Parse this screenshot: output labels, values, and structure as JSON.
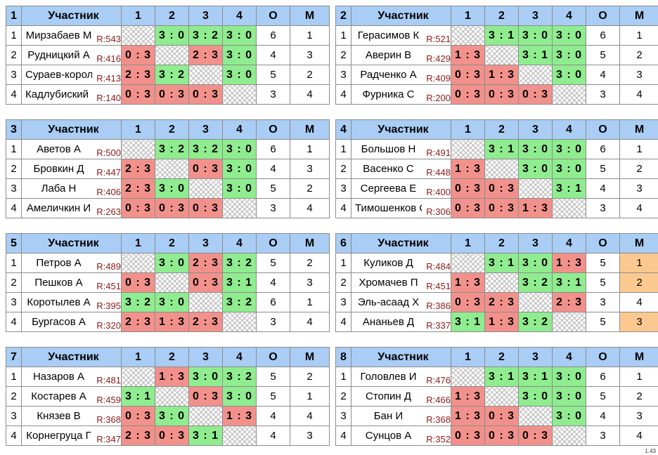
{
  "header_labels": {
    "participant": "Участник",
    "cols": [
      "1",
      "2",
      "3",
      "4"
    ],
    "points": "О",
    "place": "М"
  },
  "version": "1.43",
  "groups": [
    {
      "num": "1",
      "rows": [
        {
          "idx": "1",
          "name": "Мирзабаев М",
          "rating": "R:543",
          "cells": [
            {
              "t": "x",
              "v": ""
            },
            {
              "t": "win",
              "v": "3 : 0"
            },
            {
              "t": "win",
              "v": "3 : 2"
            },
            {
              "t": "win",
              "v": "3 : 0"
            }
          ],
          "points": "6",
          "place": "1"
        },
        {
          "idx": "2",
          "name": "Рудницкий А",
          "rating": "R:416",
          "cells": [
            {
              "t": "loss",
              "v": "0 : 3"
            },
            {
              "t": "x",
              "v": ""
            },
            {
              "t": "loss",
              "v": "2 : 3"
            },
            {
              "t": "win",
              "v": "3 : 0"
            }
          ],
          "points": "4",
          "place": "3"
        },
        {
          "idx": "3",
          "name": "Сураев-королёв",
          "rating": "R:413",
          "cells": [
            {
              "t": "loss",
              "v": "2 : 3"
            },
            {
              "t": "win",
              "v": "3 : 2"
            },
            {
              "t": "x",
              "v": ""
            },
            {
              "t": "win",
              "v": "3 : 0"
            }
          ],
          "points": "5",
          "place": "2"
        },
        {
          "idx": "4",
          "name": "Кадлубиский С",
          "rating": "R:140",
          "cells": [
            {
              "t": "loss",
              "v": "0 : 3"
            },
            {
              "t": "loss",
              "v": "0 : 3"
            },
            {
              "t": "loss",
              "v": "0 : 3"
            },
            {
              "t": "x",
              "v": ""
            }
          ],
          "points": "3",
          "place": "4"
        }
      ]
    },
    {
      "num": "2",
      "rows": [
        {
          "idx": "1",
          "name": "Герасимов К",
          "rating": "R:521",
          "cells": [
            {
              "t": "x",
              "v": ""
            },
            {
              "t": "win",
              "v": "3 : 1"
            },
            {
              "t": "win",
              "v": "3 : 0"
            },
            {
              "t": "win",
              "v": "3 : 0"
            }
          ],
          "points": "6",
          "place": "1"
        },
        {
          "idx": "2",
          "name": "Аверин В",
          "rating": "R:429",
          "cells": [
            {
              "t": "loss",
              "v": "1 : 3"
            },
            {
              "t": "x",
              "v": ""
            },
            {
              "t": "win",
              "v": "3 : 1"
            },
            {
              "t": "win",
              "v": "3 : 0"
            }
          ],
          "points": "5",
          "place": "2"
        },
        {
          "idx": "3",
          "name": "Радченко А",
          "rating": "R:409",
          "cells": [
            {
              "t": "loss",
              "v": "0 : 3"
            },
            {
              "t": "loss",
              "v": "1 : 3"
            },
            {
              "t": "x",
              "v": ""
            },
            {
              "t": "win",
              "v": "3 : 0"
            }
          ],
          "points": "4",
          "place": "3"
        },
        {
          "idx": "4",
          "name": "Фурника С",
          "rating": "R:200",
          "cells": [
            {
              "t": "loss",
              "v": "0 : 3"
            },
            {
              "t": "loss",
              "v": "0 : 3"
            },
            {
              "t": "loss",
              "v": "0 : 3"
            },
            {
              "t": "x",
              "v": ""
            }
          ],
          "points": "3",
          "place": "4"
        }
      ]
    },
    {
      "num": "3",
      "rows": [
        {
          "idx": "1",
          "name": "Аветов А",
          "rating": "R:500",
          "cells": [
            {
              "t": "x",
              "v": ""
            },
            {
              "t": "win",
              "v": "3 : 2"
            },
            {
              "t": "win",
              "v": "3 : 2"
            },
            {
              "t": "win",
              "v": "3 : 0"
            }
          ],
          "points": "6",
          "place": "1"
        },
        {
          "idx": "2",
          "name": "Бровкин Д",
          "rating": "R:447",
          "cells": [
            {
              "t": "loss",
              "v": "2 : 3"
            },
            {
              "t": "x",
              "v": ""
            },
            {
              "t": "loss",
              "v": "0 : 3"
            },
            {
              "t": "win",
              "v": "3 : 0"
            }
          ],
          "points": "4",
          "place": "3"
        },
        {
          "idx": "3",
          "name": "Лаба Н",
          "rating": "R:406",
          "cells": [
            {
              "t": "loss",
              "v": "2 : 3"
            },
            {
              "t": "win",
              "v": "3 : 0"
            },
            {
              "t": "x",
              "v": ""
            },
            {
              "t": "win",
              "v": "3 : 0"
            }
          ],
          "points": "5",
          "place": "2"
        },
        {
          "idx": "4",
          "name": "Амеличкин И",
          "rating": "R:263",
          "cells": [
            {
              "t": "loss",
              "v": "0 : 3"
            },
            {
              "t": "loss",
              "v": "0 : 3"
            },
            {
              "t": "loss",
              "v": "0 : 3"
            },
            {
              "t": "x",
              "v": ""
            }
          ],
          "points": "3",
          "place": "4"
        }
      ]
    },
    {
      "num": "4",
      "rows": [
        {
          "idx": "1",
          "name": "Большов Н",
          "rating": "R:491",
          "cells": [
            {
              "t": "x",
              "v": ""
            },
            {
              "t": "win",
              "v": "3 : 1"
            },
            {
              "t": "win",
              "v": "3 : 0"
            },
            {
              "t": "win",
              "v": "3 : 0"
            }
          ],
          "points": "6",
          "place": "1"
        },
        {
          "idx": "2",
          "name": "Васенко С",
          "rating": "R:448",
          "cells": [
            {
              "t": "loss",
              "v": "1 : 3"
            },
            {
              "t": "x",
              "v": ""
            },
            {
              "t": "win",
              "v": "3 : 0"
            },
            {
              "t": "win",
              "v": "3 : 0"
            }
          ],
          "points": "5",
          "place": "2"
        },
        {
          "idx": "3",
          "name": "Сергеева Е",
          "rating": "R:400",
          "cells": [
            {
              "t": "loss",
              "v": "0 : 3"
            },
            {
              "t": "loss",
              "v": "0 : 3"
            },
            {
              "t": "x",
              "v": ""
            },
            {
              "t": "win",
              "v": "3 : 1"
            }
          ],
          "points": "4",
          "place": "3"
        },
        {
          "idx": "4",
          "name": "Тимошенков С",
          "rating": "R:306",
          "cells": [
            {
              "t": "loss",
              "v": "0 : 3"
            },
            {
              "t": "loss",
              "v": "0 : 3"
            },
            {
              "t": "loss",
              "v": "1 : 3"
            },
            {
              "t": "x",
              "v": ""
            }
          ],
          "points": "3",
          "place": "4"
        }
      ]
    },
    {
      "num": "5",
      "rows": [
        {
          "idx": "1",
          "name": "Петров А",
          "rating": "R:489",
          "cells": [
            {
              "t": "x",
              "v": ""
            },
            {
              "t": "win",
              "v": "3 : 0"
            },
            {
              "t": "loss",
              "v": "2 : 3"
            },
            {
              "t": "win",
              "v": "3 : 2"
            }
          ],
          "points": "5",
          "place": "2"
        },
        {
          "idx": "2",
          "name": "Пешков А",
          "rating": "R:451",
          "cells": [
            {
              "t": "loss",
              "v": "0 : 3"
            },
            {
              "t": "x",
              "v": ""
            },
            {
              "t": "loss",
              "v": "0 : 3"
            },
            {
              "t": "win",
              "v": "3 : 1"
            }
          ],
          "points": "4",
          "place": "3"
        },
        {
          "idx": "3",
          "name": "Коротылев А",
          "rating": "R:395",
          "cells": [
            {
              "t": "win",
              "v": "3 : 2"
            },
            {
              "t": "win",
              "v": "3 : 0"
            },
            {
              "t": "x",
              "v": ""
            },
            {
              "t": "win",
              "v": "3 : 2"
            }
          ],
          "points": "6",
          "place": "1"
        },
        {
          "idx": "4",
          "name": "Бургасов А",
          "rating": "R:320",
          "cells": [
            {
              "t": "loss",
              "v": "2 : 3"
            },
            {
              "t": "loss",
              "v": "1 : 3"
            },
            {
              "t": "loss",
              "v": "2 : 3"
            },
            {
              "t": "x",
              "v": ""
            }
          ],
          "points": "3",
          "place": "4"
        }
      ]
    },
    {
      "num": "6",
      "rows": [
        {
          "idx": "1",
          "name": "Куликов Д",
          "rating": "R:484",
          "cells": [
            {
              "t": "x",
              "v": ""
            },
            {
              "t": "win",
              "v": "3 : 1"
            },
            {
              "t": "win",
              "v": "3 : 0"
            },
            {
              "t": "loss",
              "v": "1 : 3"
            }
          ],
          "points": "5",
          "place": "1",
          "place_hl": true
        },
        {
          "idx": "2",
          "name": "Хромачев П",
          "rating": "R:451",
          "cells": [
            {
              "t": "loss",
              "v": "1 : 3"
            },
            {
              "t": "x",
              "v": ""
            },
            {
              "t": "win",
              "v": "3 : 2"
            },
            {
              "t": "win",
              "v": "3 : 1"
            }
          ],
          "points": "5",
          "place": "2",
          "place_hl": true
        },
        {
          "idx": "3",
          "name": "Эль-асаад Х",
          "rating": "R:386",
          "cells": [
            {
              "t": "loss",
              "v": "0 : 3"
            },
            {
              "t": "loss",
              "v": "2 : 3"
            },
            {
              "t": "x",
              "v": ""
            },
            {
              "t": "loss",
              "v": "2 : 3"
            }
          ],
          "points": "3",
          "place": "4"
        },
        {
          "idx": "4",
          "name": "Ананьев Д",
          "rating": "R:337",
          "cells": [
            {
              "t": "win",
              "v": "3 : 1"
            },
            {
              "t": "loss",
              "v": "1 : 3"
            },
            {
              "t": "win",
              "v": "3 : 2"
            },
            {
              "t": "x",
              "v": ""
            }
          ],
          "points": "5",
          "place": "3",
          "place_hl": true
        }
      ]
    },
    {
      "num": "7",
      "rows": [
        {
          "idx": "1",
          "name": "Назаров А",
          "rating": "R:481",
          "cells": [
            {
              "t": "x",
              "v": ""
            },
            {
              "t": "loss",
              "v": "1 : 3"
            },
            {
              "t": "win",
              "v": "3 : 0"
            },
            {
              "t": "win",
              "v": "3 : 2"
            }
          ],
          "points": "5",
          "place": "2"
        },
        {
          "idx": "2",
          "name": "Костарев А",
          "rating": "R:459",
          "cells": [
            {
              "t": "win",
              "v": "3 : 1"
            },
            {
              "t": "x",
              "v": ""
            },
            {
              "t": "loss",
              "v": "0 : 3"
            },
            {
              "t": "win",
              "v": "3 : 0"
            }
          ],
          "points": "5",
          "place": "1"
        },
        {
          "idx": "3",
          "name": "Князев В",
          "rating": "R:368",
          "cells": [
            {
              "t": "loss",
              "v": "0 : 3"
            },
            {
              "t": "win",
              "v": "3 : 0"
            },
            {
              "t": "x",
              "v": ""
            },
            {
              "t": "loss",
              "v": "1 : 3"
            }
          ],
          "points": "4",
          "place": "4"
        },
        {
          "idx": "4",
          "name": "Корнегруца Г",
          "rating": "R:347",
          "cells": [
            {
              "t": "loss",
              "v": "2 : 3"
            },
            {
              "t": "loss",
              "v": "0 : 3"
            },
            {
              "t": "win",
              "v": "3 : 1"
            },
            {
              "t": "x",
              "v": ""
            }
          ],
          "points": "4",
          "place": "3"
        }
      ]
    },
    {
      "num": "8",
      "rows": [
        {
          "idx": "1",
          "name": "Головлев И",
          "rating": "R:476",
          "cells": [
            {
              "t": "x",
              "v": ""
            },
            {
              "t": "win",
              "v": "3 : 1"
            },
            {
              "t": "win",
              "v": "3 : 1"
            },
            {
              "t": "win",
              "v": "3 : 0"
            }
          ],
          "points": "6",
          "place": "1"
        },
        {
          "idx": "2",
          "name": "Стопин Д",
          "rating": "R:466",
          "cells": [
            {
              "t": "loss",
              "v": "1 : 3"
            },
            {
              "t": "x",
              "v": ""
            },
            {
              "t": "win",
              "v": "3 : 0"
            },
            {
              "t": "win",
              "v": "3 : 0"
            }
          ],
          "points": "5",
          "place": "2"
        },
        {
          "idx": "3",
          "name": "Бан И",
          "rating": "R:368",
          "cells": [
            {
              "t": "loss",
              "v": "1 : 3"
            },
            {
              "t": "loss",
              "v": "0 : 3"
            },
            {
              "t": "x",
              "v": ""
            },
            {
              "t": "win",
              "v": "3 : 0"
            }
          ],
          "points": "4",
          "place": "3"
        },
        {
          "idx": "4",
          "name": "Сунцов А",
          "rating": "R:352",
          "cells": [
            {
              "t": "loss",
              "v": "0 : 3"
            },
            {
              "t": "loss",
              "v": "0 : 3"
            },
            {
              "t": "loss",
              "v": "0 : 3"
            },
            {
              "t": "x",
              "v": ""
            }
          ],
          "points": "3",
          "place": "4"
        }
      ]
    }
  ]
}
